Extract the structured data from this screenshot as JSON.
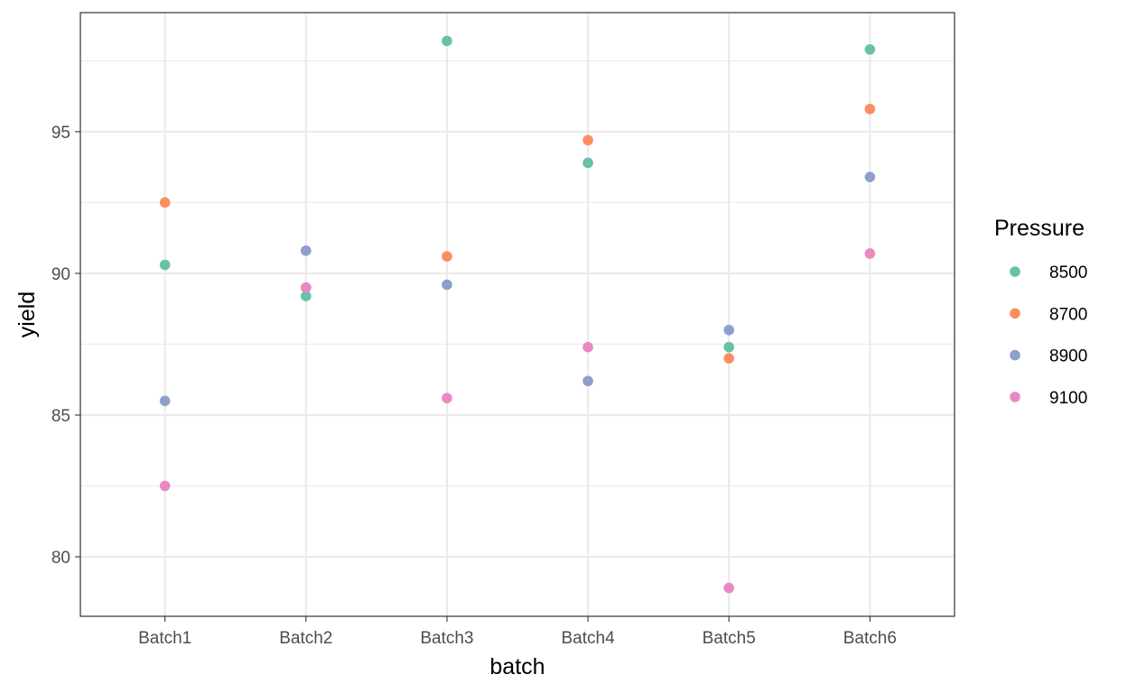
{
  "chart_data": {
    "type": "scatter",
    "xlabel": "batch",
    "ylabel": "yield",
    "categories": [
      "Batch1",
      "Batch2",
      "Batch3",
      "Batch4",
      "Batch5",
      "Batch6"
    ],
    "ylim": [
      77.9,
      99.2
    ],
    "y_major_ticks": [
      80,
      85,
      90,
      95
    ],
    "grid": true,
    "legend": {
      "title": "Pressure",
      "placement": "right"
    },
    "series": [
      {
        "name": "8500",
        "color": "#66c2a5",
        "values": [
          90.3,
          89.2,
          98.2,
          93.9,
          87.4,
          97.9
        ]
      },
      {
        "name": "8700",
        "color": "#fc8d62",
        "values": [
          92.5,
          89.5,
          90.6,
          94.7,
          87.0,
          95.8
        ]
      },
      {
        "name": "8900",
        "color": "#8da0cb",
        "values": [
          85.5,
          90.8,
          89.6,
          86.2,
          88.0,
          93.4
        ]
      },
      {
        "name": "9100",
        "color": "#e78ac3",
        "values": [
          82.5,
          89.5,
          85.6,
          87.4,
          78.9,
          90.7
        ]
      }
    ]
  }
}
